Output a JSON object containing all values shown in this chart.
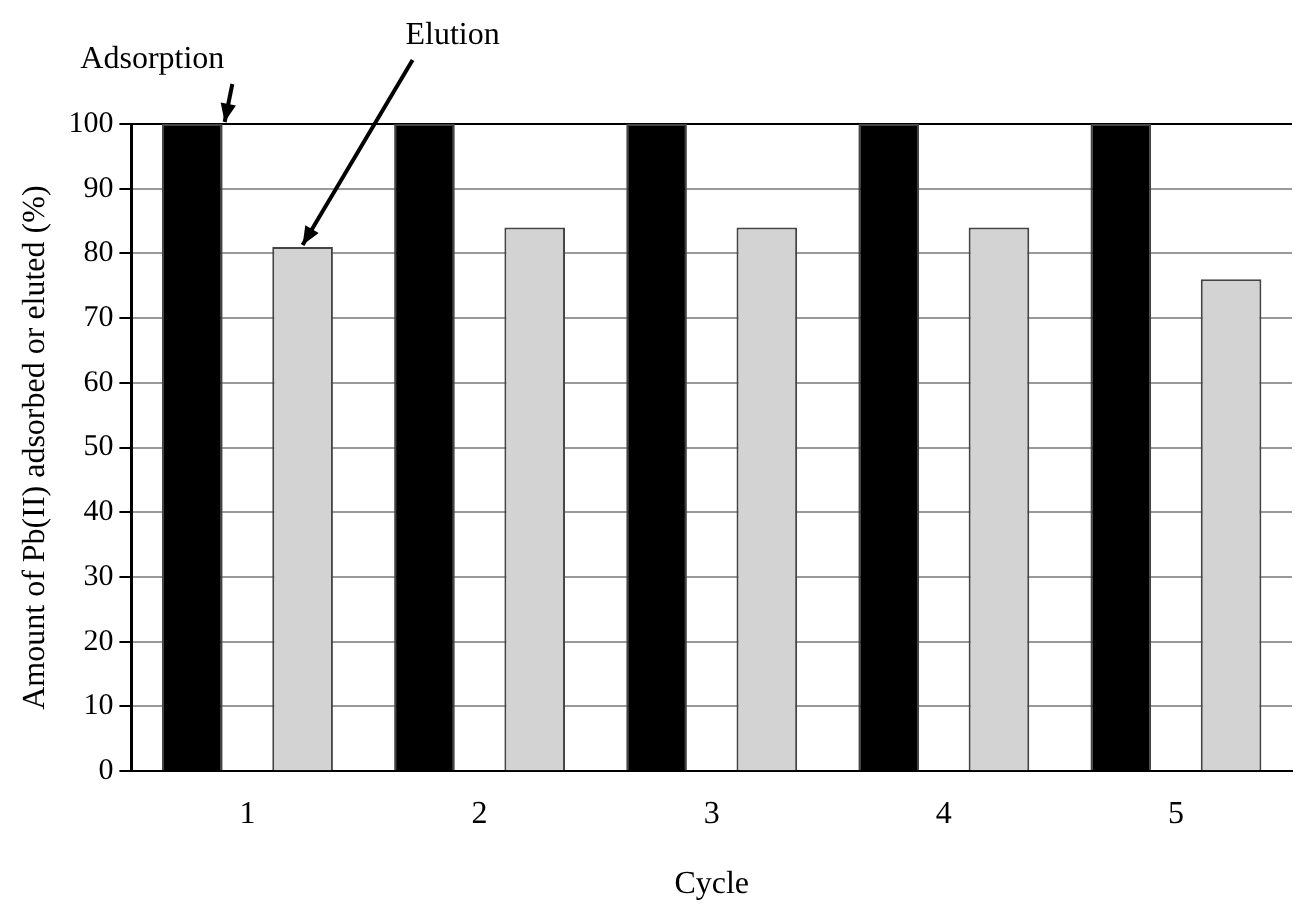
{
  "chart_data": {
    "type": "bar",
    "xlabel": "Cycle",
    "ylabel": "Amount of Pb(II) adsorbed or eluted (%)",
    "categories": [
      "1",
      "2",
      "3",
      "4",
      "5"
    ],
    "series": [
      {
        "name": "Adsorption",
        "color": "#000000",
        "values": [
          100,
          100,
          100,
          100,
          100
        ]
      },
      {
        "name": "Elution",
        "color": "#d3d3d3",
        "values": [
          81,
          84,
          84,
          84,
          76
        ]
      }
    ],
    "ylim": [
      0,
      100
    ],
    "yticks": [
      0,
      10,
      20,
      30,
      40,
      50,
      60,
      70,
      80,
      90,
      100
    ],
    "grid": "y",
    "legend": false
  }
}
